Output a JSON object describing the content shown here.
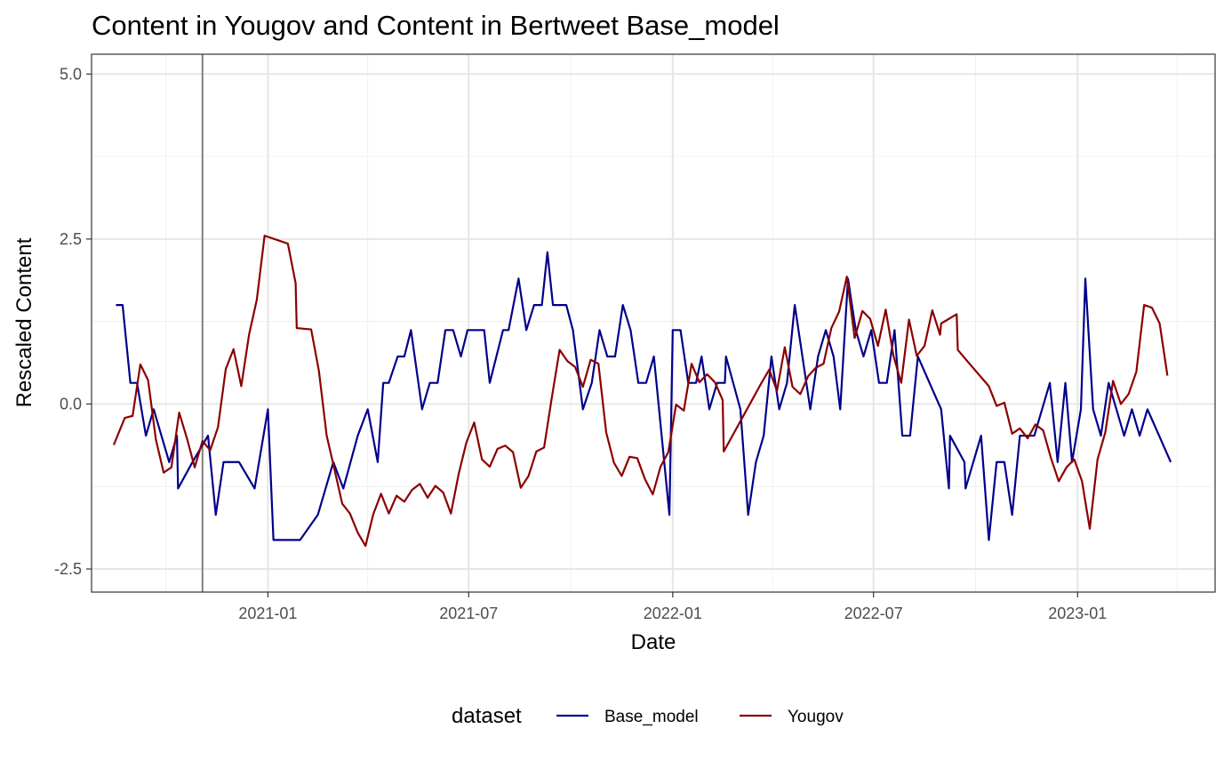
{
  "chart_data": {
    "type": "line",
    "title": "Content  in Yougov and  Content  in Bertweet  Base_model",
    "xlabel": "Date",
    "ylabel": "Rescaled  Content",
    "xlim": [
      "2020-07-26",
      "2023-05-05"
    ],
    "ylim": [
      -2.85,
      5.3
    ],
    "x_ticks": [
      {
        "value": "2021-01-01",
        "label": "2021-01"
      },
      {
        "value": "2021-07-01",
        "label": "2021-07"
      },
      {
        "value": "2022-01-01",
        "label": "2022-01"
      },
      {
        "value": "2022-07-01",
        "label": "2022-07"
      },
      {
        "value": "2023-01-01",
        "label": "2023-01"
      }
    ],
    "x_minor_ticks": [
      "2020-10-01",
      "2021-04-01",
      "2021-10-01",
      "2022-04-01",
      "2022-10-01",
      "2023-04-01"
    ],
    "y_ticks": [
      {
        "value": -2.5,
        "label": "-2.5"
      },
      {
        "value": 0,
        "label": "0.0"
      },
      {
        "value": 2.5,
        "label": "2.5"
      },
      {
        "value": 5,
        "label": "5.0"
      }
    ],
    "y_minor_ticks": [
      -1.25,
      1.25,
      3.75
    ],
    "reference_line": {
      "x": "2020-11-03",
      "color": "#7f7f7f"
    },
    "grid": true,
    "legend": {
      "title": "dataset",
      "position": "bottom"
    },
    "series": [
      {
        "name": "Base_model",
        "color": "#00008B",
        "points": [
          [
            "2020-08-17",
            1.5
          ],
          [
            "2020-08-23",
            1.5
          ],
          [
            "2020-08-30",
            0.32
          ],
          [
            "2020-09-05",
            0.32
          ],
          [
            "2020-09-13",
            -0.48
          ],
          [
            "2020-09-20",
            -0.08
          ],
          [
            "2020-10-04",
            -0.88
          ],
          [
            "2020-10-11",
            -0.48
          ],
          [
            "2020-10-12",
            -1.28
          ],
          [
            "2020-10-25",
            -0.88
          ],
          [
            "2020-11-08",
            -0.48
          ],
          [
            "2020-11-15",
            -1.68
          ],
          [
            "2020-11-22",
            -0.88
          ],
          [
            "2020-12-06",
            -0.88
          ],
          [
            "2020-12-20",
            -1.28
          ],
          [
            "2021-01-01",
            -0.08
          ],
          [
            "2021-01-06",
            -2.06
          ],
          [
            "2021-01-30",
            -2.06
          ],
          [
            "2021-02-15",
            -1.68
          ],
          [
            "2021-03-01",
            -0.88
          ],
          [
            "2021-03-10",
            -1.28
          ],
          [
            "2021-03-23",
            -0.48
          ],
          [
            "2021-04-01",
            -0.08
          ],
          [
            "2021-04-10",
            -0.88
          ],
          [
            "2021-04-15",
            0.32
          ],
          [
            "2021-04-20",
            0.32
          ],
          [
            "2021-04-28",
            0.72
          ],
          [
            "2021-05-04",
            0.72
          ],
          [
            "2021-05-10",
            1.12
          ],
          [
            "2021-05-20",
            -0.08
          ],
          [
            "2021-05-27",
            0.32
          ],
          [
            "2021-06-03",
            0.32
          ],
          [
            "2021-06-10",
            1.12
          ],
          [
            "2021-06-17",
            1.12
          ],
          [
            "2021-06-24",
            0.72
          ],
          [
            "2021-06-30",
            1.12
          ],
          [
            "2021-07-08",
            1.12
          ],
          [
            "2021-07-15",
            1.12
          ],
          [
            "2021-07-20",
            0.32
          ],
          [
            "2021-08-01",
            1.12
          ],
          [
            "2021-08-06",
            1.12
          ],
          [
            "2021-08-15",
            1.9
          ],
          [
            "2021-08-22",
            1.12
          ],
          [
            "2021-08-29",
            1.5
          ],
          [
            "2021-09-05",
            1.5
          ],
          [
            "2021-09-10",
            2.3
          ],
          [
            "2021-09-15",
            1.5
          ],
          [
            "2021-09-27",
            1.5
          ],
          [
            "2021-10-03",
            1.12
          ],
          [
            "2021-10-12",
            -0.08
          ],
          [
            "2021-10-20",
            0.32
          ],
          [
            "2021-10-27",
            1.12
          ],
          [
            "2021-11-03",
            0.72
          ],
          [
            "2021-11-10",
            0.72
          ],
          [
            "2021-11-17",
            1.5
          ],
          [
            "2021-11-24",
            1.12
          ],
          [
            "2021-12-01",
            0.32
          ],
          [
            "2021-12-08",
            0.32
          ],
          [
            "2021-12-15",
            0.72
          ],
          [
            "2021-12-29",
            -1.68
          ],
          [
            "2022-01-01",
            1.12
          ],
          [
            "2022-01-08",
            1.12
          ],
          [
            "2022-01-15",
            0.32
          ],
          [
            "2022-01-22",
            0.32
          ],
          [
            "2022-01-27",
            0.72
          ],
          [
            "2022-02-03",
            -0.08
          ],
          [
            "2022-02-10",
            0.32
          ],
          [
            "2022-02-17",
            0.32
          ],
          [
            "2022-02-18",
            0.72
          ],
          [
            "2022-03-03",
            -0.08
          ],
          [
            "2022-03-10",
            -1.68
          ],
          [
            "2022-03-17",
            -0.88
          ],
          [
            "2022-03-24",
            -0.48
          ],
          [
            "2022-03-31",
            0.72
          ],
          [
            "2022-04-07",
            -0.08
          ],
          [
            "2022-04-14",
            0.32
          ],
          [
            "2022-04-21",
            1.5
          ],
          [
            "2022-05-05",
            -0.08
          ],
          [
            "2022-05-12",
            0.72
          ],
          [
            "2022-05-19",
            1.12
          ],
          [
            "2022-05-26",
            0.72
          ],
          [
            "2022-06-01",
            -0.08
          ],
          [
            "2022-06-08",
            1.9
          ],
          [
            "2022-06-15",
            1.12
          ],
          [
            "2022-06-22",
            0.72
          ],
          [
            "2022-06-29",
            1.12
          ],
          [
            "2022-07-06",
            0.32
          ],
          [
            "2022-07-13",
            0.32
          ],
          [
            "2022-07-20",
            1.12
          ],
          [
            "2022-07-27",
            -0.48
          ],
          [
            "2022-08-03",
            -0.48
          ],
          [
            "2022-08-10",
            0.72
          ],
          [
            "2022-08-31",
            -0.08
          ],
          [
            "2022-09-07",
            -1.28
          ],
          [
            "2022-09-08",
            -0.48
          ],
          [
            "2022-09-21",
            -0.88
          ],
          [
            "2022-09-22",
            -1.28
          ],
          [
            "2022-10-06",
            -0.48
          ],
          [
            "2022-10-13",
            -2.06
          ],
          [
            "2022-10-20",
            -0.88
          ],
          [
            "2022-10-27",
            -0.88
          ],
          [
            "2022-11-03",
            -1.68
          ],
          [
            "2022-11-10",
            -0.48
          ],
          [
            "2022-11-17",
            -0.48
          ],
          [
            "2022-11-23",
            -0.48
          ],
          [
            "2022-11-30",
            -0.08
          ],
          [
            "2022-12-07",
            0.32
          ],
          [
            "2022-12-14",
            -0.88
          ],
          [
            "2022-12-21",
            0.32
          ],
          [
            "2022-12-27",
            -0.88
          ],
          [
            "2023-01-04",
            -0.08
          ],
          [
            "2023-01-08",
            1.9
          ],
          [
            "2023-01-15",
            -0.08
          ],
          [
            "2023-01-22",
            -0.48
          ],
          [
            "2023-01-29",
            0.32
          ],
          [
            "2023-02-05",
            -0.08
          ],
          [
            "2023-02-12",
            -0.48
          ],
          [
            "2023-02-19",
            -0.08
          ],
          [
            "2023-02-26",
            -0.48
          ],
          [
            "2023-03-05",
            -0.08
          ],
          [
            "2023-03-26",
            -0.88
          ]
        ]
      },
      {
        "name": "Yougov",
        "color": "#8B0000",
        "points": [
          [
            "2020-08-15",
            -0.62
          ],
          [
            "2020-08-25",
            -0.21
          ],
          [
            "2020-09-01",
            -0.18
          ],
          [
            "2020-09-08",
            0.6
          ],
          [
            "2020-09-15",
            0.36
          ],
          [
            "2020-09-22",
            -0.54
          ],
          [
            "2020-09-29",
            -1.04
          ],
          [
            "2020-10-06",
            -0.96
          ],
          [
            "2020-10-13",
            -0.13
          ],
          [
            "2020-10-20",
            -0.52
          ],
          [
            "2020-10-27",
            -0.96
          ],
          [
            "2020-11-03",
            -0.56
          ],
          [
            "2020-11-10",
            -0.7
          ],
          [
            "2020-11-17",
            -0.35
          ],
          [
            "2020-11-24",
            0.53
          ],
          [
            "2020-12-01",
            0.83
          ],
          [
            "2020-12-08",
            0.27
          ],
          [
            "2020-12-15",
            1.05
          ],
          [
            "2020-12-22",
            1.58
          ],
          [
            "2020-12-29",
            2.55
          ],
          [
            "2021-01-19",
            2.43
          ],
          [
            "2021-01-26",
            1.83
          ],
          [
            "2021-01-27",
            1.15
          ],
          [
            "2021-02-09",
            1.13
          ],
          [
            "2021-02-16",
            0.5
          ],
          [
            "2021-02-23",
            -0.48
          ],
          [
            "2021-03-02",
            -0.99
          ],
          [
            "2021-03-09",
            -1.51
          ],
          [
            "2021-03-16",
            -1.66
          ],
          [
            "2021-03-23",
            -1.95
          ],
          [
            "2021-03-30",
            -2.15
          ],
          [
            "2021-04-06",
            -1.67
          ],
          [
            "2021-04-13",
            -1.36
          ],
          [
            "2021-04-20",
            -1.66
          ],
          [
            "2021-04-27",
            -1.39
          ],
          [
            "2021-05-04",
            -1.48
          ],
          [
            "2021-05-11",
            -1.3
          ],
          [
            "2021-05-18",
            -1.21
          ],
          [
            "2021-05-25",
            -1.42
          ],
          [
            "2021-06-01",
            -1.24
          ],
          [
            "2021-06-08",
            -1.34
          ],
          [
            "2021-06-15",
            -1.66
          ],
          [
            "2021-06-22",
            -1.06
          ],
          [
            "2021-06-29",
            -0.58
          ],
          [
            "2021-07-06",
            -0.28
          ],
          [
            "2021-07-13",
            -0.84
          ],
          [
            "2021-07-20",
            -0.95
          ],
          [
            "2021-07-27",
            -0.68
          ],
          [
            "2021-08-03",
            -0.63
          ],
          [
            "2021-08-10",
            -0.73
          ],
          [
            "2021-08-17",
            -1.27
          ],
          [
            "2021-08-24",
            -1.09
          ],
          [
            "2021-08-31",
            -0.72
          ],
          [
            "2021-09-07",
            -0.66
          ],
          [
            "2021-09-14",
            0.1
          ],
          [
            "2021-09-21",
            0.82
          ],
          [
            "2021-09-28",
            0.65
          ],
          [
            "2021-10-05",
            0.56
          ],
          [
            "2021-10-12",
            0.26
          ],
          [
            "2021-10-19",
            0.67
          ],
          [
            "2021-10-26",
            0.61
          ],
          [
            "2021-11-02",
            -0.43
          ],
          [
            "2021-11-09",
            -0.89
          ],
          [
            "2021-11-16",
            -1.09
          ],
          [
            "2021-11-23",
            -0.8
          ],
          [
            "2021-11-30",
            -0.82
          ],
          [
            "2021-12-07",
            -1.14
          ],
          [
            "2021-12-14",
            -1.37
          ],
          [
            "2021-12-21",
            -0.95
          ],
          [
            "2021-12-28",
            -0.73
          ],
          [
            "2022-01-04",
            -0.01
          ],
          [
            "2022-01-11",
            -0.1
          ],
          [
            "2022-01-18",
            0.61
          ],
          [
            "2022-01-25",
            0.33
          ],
          [
            "2022-02-01",
            0.45
          ],
          [
            "2022-02-08",
            0.33
          ],
          [
            "2022-02-15",
            0.06
          ],
          [
            "2022-02-16",
            -0.72
          ],
          [
            "2022-03-22",
            0.32
          ],
          [
            "2022-03-29",
            0.52
          ],
          [
            "2022-04-05",
            0.2
          ],
          [
            "2022-04-12",
            0.86
          ],
          [
            "2022-04-19",
            0.26
          ],
          [
            "2022-04-26",
            0.15
          ],
          [
            "2022-05-03",
            0.42
          ],
          [
            "2022-05-10",
            0.55
          ],
          [
            "2022-05-17",
            0.61
          ],
          [
            "2022-05-24",
            1.15
          ],
          [
            "2022-05-31",
            1.4
          ],
          [
            "2022-06-07",
            1.93
          ],
          [
            "2022-06-14",
            1.0
          ],
          [
            "2022-06-21",
            1.41
          ],
          [
            "2022-06-28",
            1.29
          ],
          [
            "2022-07-05",
            0.88
          ],
          [
            "2022-07-12",
            1.43
          ],
          [
            "2022-07-19",
            0.73
          ],
          [
            "2022-07-26",
            0.32
          ],
          [
            "2022-08-02",
            1.28
          ],
          [
            "2022-08-09",
            0.73
          ],
          [
            "2022-08-16",
            0.88
          ],
          [
            "2022-08-23",
            1.42
          ],
          [
            "2022-08-30",
            1.05
          ],
          [
            "2022-08-31",
            1.22
          ],
          [
            "2022-09-14",
            1.36
          ],
          [
            "2022-09-15",
            0.82
          ],
          [
            "2022-09-22",
            0.68
          ],
          [
            "2022-10-13",
            0.27
          ],
          [
            "2022-10-20",
            -0.03
          ],
          [
            "2022-10-27",
            0.02
          ],
          [
            "2022-11-03",
            -0.45
          ],
          [
            "2022-11-10",
            -0.37
          ],
          [
            "2022-11-17",
            -0.52
          ],
          [
            "2022-11-24",
            -0.31
          ],
          [
            "2022-12-01",
            -0.4
          ],
          [
            "2022-12-08",
            -0.82
          ],
          [
            "2022-12-15",
            -1.17
          ],
          [
            "2022-12-22",
            -0.96
          ],
          [
            "2022-12-29",
            -0.84
          ],
          [
            "2023-01-05",
            -1.17
          ],
          [
            "2023-01-12",
            -1.89
          ],
          [
            "2023-01-19",
            -0.84
          ],
          [
            "2023-01-26",
            -0.43
          ],
          [
            "2023-02-02",
            0.35
          ],
          [
            "2023-02-09",
            0.0
          ],
          [
            "2023-02-16",
            0.15
          ],
          [
            "2023-02-23",
            0.49
          ],
          [
            "2023-03-02",
            1.5
          ],
          [
            "2023-03-09",
            1.46
          ],
          [
            "2023-03-16",
            1.22
          ],
          [
            "2023-03-23",
            0.43
          ]
        ]
      }
    ]
  }
}
